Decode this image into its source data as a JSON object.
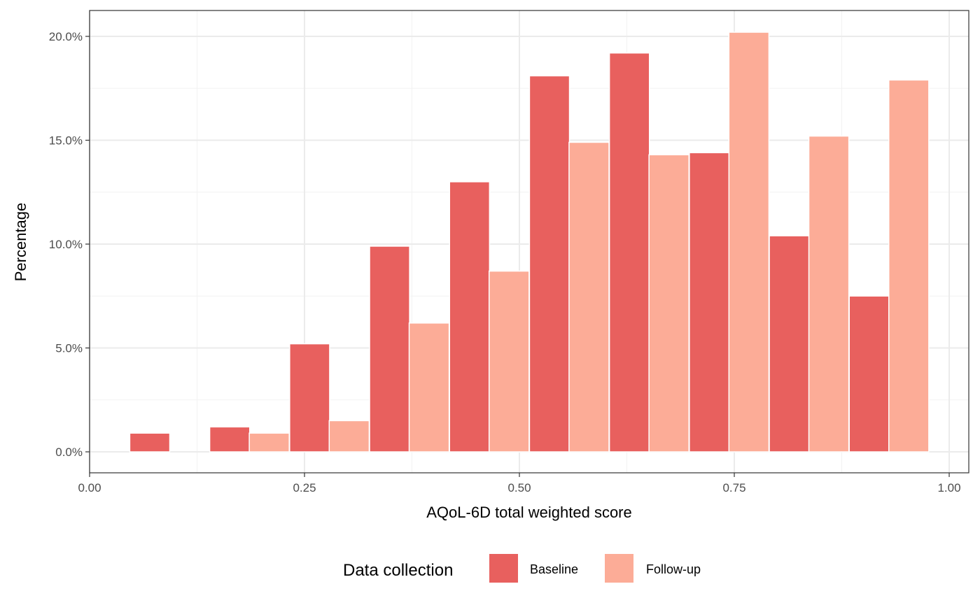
{
  "chart_data": {
    "type": "bar",
    "subtype": "histogram",
    "xlabel": "AQoL-6D total weighted score",
    "ylabel": "Percentage",
    "xlim": [
      0.0,
      1.0
    ],
    "ylim": [
      0.0,
      20.0
    ],
    "x_ticks": [
      "0.00",
      "0.25",
      "0.50",
      "0.75",
      "1.00"
    ],
    "y_ticks": [
      "0.0%",
      "5.0%",
      "10.0%",
      "15.0%",
      "20.0%"
    ],
    "grid": true,
    "legend_position": "bottom",
    "bin_width": 0.093,
    "series": [
      {
        "name": "Baseline",
        "color": "#E8605E",
        "bins": [
          {
            "x": 0.07,
            "value": 0.9
          },
          {
            "x": 0.163,
            "value": 1.2
          },
          {
            "x": 0.256,
            "value": 5.2
          },
          {
            "x": 0.349,
            "value": 9.9
          },
          {
            "x": 0.442,
            "value": 13.0
          },
          {
            "x": 0.535,
            "value": 18.1
          },
          {
            "x": 0.628,
            "value": 19.2
          },
          {
            "x": 0.721,
            "value": 14.4
          },
          {
            "x": 0.814,
            "value": 10.4
          },
          {
            "x": 0.907,
            "value": 7.5
          }
        ]
      },
      {
        "name": "Follow-up",
        "color": "#FCAC97",
        "bins": [
          {
            "x": 0.209,
            "value": 0.9
          },
          {
            "x": 0.302,
            "value": 1.5
          },
          {
            "x": 0.395,
            "value": 6.2
          },
          {
            "x": 0.488,
            "value": 8.7
          },
          {
            "x": 0.581,
            "value": 14.9
          },
          {
            "x": 0.674,
            "value": 14.3
          },
          {
            "x": 0.767,
            "value": 20.2
          },
          {
            "x": 0.86,
            "value": 15.2
          },
          {
            "x": 0.953,
            "value": 17.9
          }
        ]
      }
    ]
  },
  "legend": {
    "title": "Data collection",
    "items": [
      {
        "label": "Baseline",
        "color": "#E8605E"
      },
      {
        "label": "Follow-up",
        "color": "#FCAC97"
      }
    ]
  }
}
